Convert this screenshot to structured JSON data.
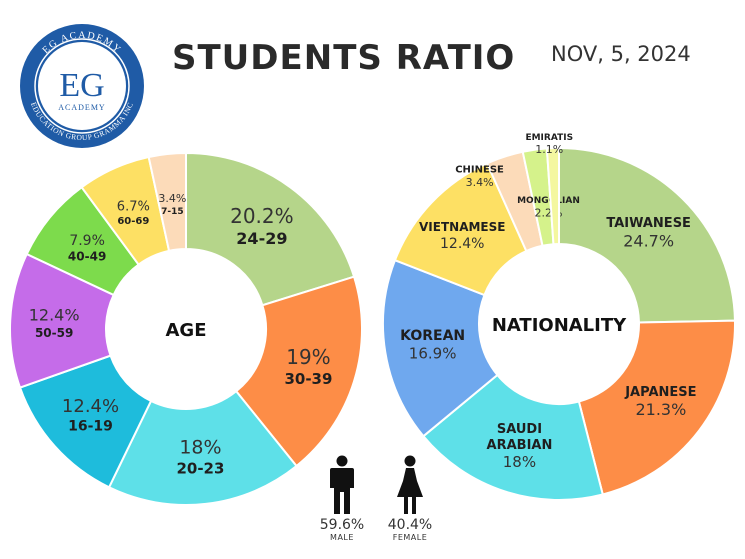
{
  "header": {
    "title": "STUDENTS RATIO",
    "date": "NOV, 5, 2024"
  },
  "logo": {
    "top_text": "EG ACADEMY",
    "mark": "EG",
    "sub": "ACADEMY",
    "bottom_text": "EDUCATION GROUP GRAMMA INC"
  },
  "chart_data": [
    {
      "type": "pie",
      "variant": "donut",
      "center_label": "AGE",
      "slices": [
        {
          "label": "24-29",
          "value": 20.2,
          "display": "20.2%",
          "color": "#b5d58a"
        },
        {
          "label": "30-39",
          "value": 19,
          "display": "19%",
          "color": "#fd8d47"
        },
        {
          "label": "20-23",
          "value": 18,
          "display": "18%",
          "color": "#5ee0e8"
        },
        {
          "label": "16-19",
          "value": 12.4,
          "display": "12.4%",
          "color": "#1ebcdc"
        },
        {
          "label": "50-59",
          "value": 12.4,
          "display": "12.4%",
          "color": "#c56ce9"
        },
        {
          "label": "40-49",
          "value": 7.9,
          "display": "7.9%",
          "color": "#7ddb4c"
        },
        {
          "label": "60-69",
          "value": 6.7,
          "display": "6.7%",
          "color": "#fde064"
        },
        {
          "label": "7-15",
          "value": 3.4,
          "display": "3.4%",
          "color": "#fcdbb9"
        }
      ]
    },
    {
      "type": "pie",
      "variant": "donut",
      "center_label": "NATIONALITY",
      "slices": [
        {
          "label": "TAIWANESE",
          "value": 24.7,
          "display": "24.7%",
          "color": "#b5d58a"
        },
        {
          "label": "JAPANESE",
          "value": 21.3,
          "display": "21.3%",
          "color": "#fd8d47"
        },
        {
          "label": "SAUDI ARABIAN",
          "value": 18,
          "display": "18%",
          "color": "#5ee0e8"
        },
        {
          "label": "KOREAN",
          "value": 16.9,
          "display": "16.9%",
          "color": "#6fa8ee"
        },
        {
          "label": "VIETNAMESE",
          "value": 12.4,
          "display": "12.4%",
          "color": "#fde064"
        },
        {
          "label": "CHINESE",
          "value": 3.4,
          "display": "3.4%",
          "color": "#fcdbb9"
        },
        {
          "label": "MONGOLIAN",
          "value": 2.2,
          "display": "2.2%",
          "color": "#d5f28b"
        },
        {
          "label": "EMIRATIS",
          "value": 1.1,
          "display": "1.1%",
          "color": "#f4f7a0"
        }
      ]
    }
  ],
  "gender": {
    "male": {
      "percent": "59.6%",
      "label": "MALE"
    },
    "female": {
      "percent": "40.4%",
      "label": "FEMALE"
    }
  }
}
